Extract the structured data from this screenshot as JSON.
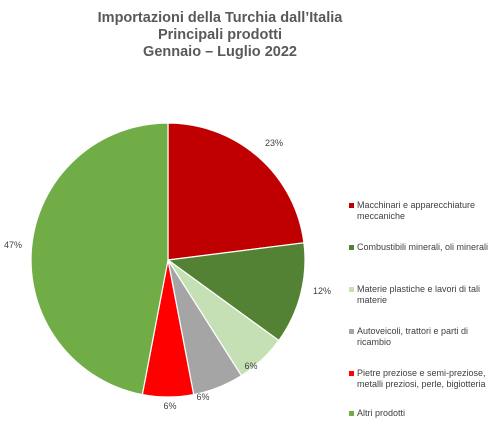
{
  "chart_data": {
    "type": "pie",
    "title": [
      "Importazioni della Turchia dall’Italia",
      "Principali prodotti",
      "Gennaio – Luglio 2022"
    ],
    "slices": [
      {
        "name": "Macchinari e apparecchiature meccaniche",
        "value": 23,
        "label": "23%",
        "color": "#C00000"
      },
      {
        "name": "Combustibili minerali, oli minerali",
        "value": 12,
        "label": "12%",
        "color": "#548235"
      },
      {
        "name": "Materie plastiche e lavori di tali materie",
        "value": 6,
        "label": "6%",
        "color": "#C5E0B4"
      },
      {
        "name": "Autoveicoli, trattori e parti di ricambio",
        "value": 6,
        "label": "6%",
        "color": "#A5A5A5"
      },
      {
        "name": "Pietre preziose e semi-preziose, metalli preziosi, perle, bigiotteria",
        "value": 6,
        "label": "6%",
        "color": "#FF0000"
      },
      {
        "name": "Altri prodotti",
        "value": 47,
        "label": "47%",
        "color": "#70AD47"
      }
    ],
    "legend_position": "right"
  }
}
